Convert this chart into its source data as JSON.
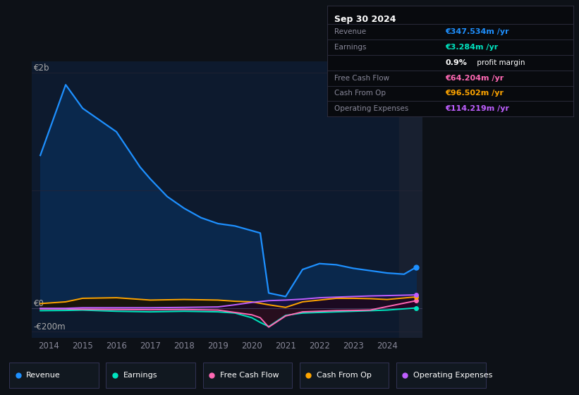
{
  "background_color": "#0d1117",
  "plot_bg_color": "#0d1a2e",
  "info_bg_color": "#080a0e",
  "ylabel_top": "€2b",
  "ylabel_zero": "€0",
  "ylabel_bottom": "-€200m",
  "x_labels": [
    "2014",
    "2015",
    "2016",
    "2017",
    "2018",
    "2019",
    "2020",
    "2021",
    "2022",
    "2023",
    "2024"
  ],
  "ylim": [
    -250,
    2100
  ],
  "info_box": {
    "date": "Sep 30 2024",
    "date_color": "#ffffff",
    "rows": [
      {
        "label": "Revenue",
        "label_color": "#888899",
        "value": "€347.534m /yr",
        "value_color": "#1e90ff"
      },
      {
        "label": "Earnings",
        "label_color": "#888899",
        "value": "€3.284m /yr",
        "value_color": "#00e5c0"
      },
      {
        "label": "",
        "label_color": "#888899",
        "value": "0.9%",
        "value_color": "#ffffff",
        "extra": " profit margin",
        "extra_color": "#ffffff"
      },
      {
        "label": "Free Cash Flow",
        "label_color": "#888899",
        "value": "€64.204m /yr",
        "value_color": "#ff69b4"
      },
      {
        "label": "Cash From Op",
        "label_color": "#888899",
        "value": "€96.502m /yr",
        "value_color": "#ffa500"
      },
      {
        "label": "Operating Expenses",
        "label_color": "#888899",
        "value": "€114.219m /yr",
        "value_color": "#bf5fff"
      }
    ]
  },
  "revenue_x": [
    2013.75,
    2014.5,
    2015.0,
    2015.5,
    2016.0,
    2016.7,
    2017.0,
    2017.5,
    2018.0,
    2018.5,
    2019.0,
    2019.5,
    2019.75,
    2020.25,
    2020.5,
    2021.0,
    2021.5,
    2022.0,
    2022.5,
    2023.0,
    2023.5,
    2024.0,
    2024.5,
    2024.85
  ],
  "revenue_y": [
    1300,
    1900,
    1700,
    1600,
    1500,
    1200,
    1100,
    950,
    850,
    770,
    720,
    700,
    680,
    640,
    130,
    100,
    330,
    380,
    370,
    340,
    320,
    300,
    290,
    348
  ],
  "earnings_x": [
    2013.75,
    2014.5,
    2015.0,
    2016.0,
    2017.0,
    2018.0,
    2019.0,
    2019.5,
    2020.0,
    2020.25,
    2020.5,
    2021.0,
    2021.5,
    2022.0,
    2022.5,
    2023.0,
    2023.5,
    2024.0,
    2024.85
  ],
  "earnings_y": [
    -20,
    -18,
    -15,
    -25,
    -30,
    -25,
    -30,
    -40,
    -80,
    -120,
    -155,
    -60,
    -40,
    -35,
    -30,
    -25,
    -20,
    -15,
    3
  ],
  "fcf_x": [
    2013.75,
    2014.5,
    2015.0,
    2016.0,
    2017.0,
    2018.0,
    2019.0,
    2019.5,
    2020.0,
    2020.25,
    2020.5,
    2021.0,
    2021.5,
    2022.0,
    2022.5,
    2023.0,
    2023.5,
    2024.0,
    2024.85
  ],
  "fcf_y": [
    -5,
    -5,
    -8,
    -10,
    -12,
    -10,
    -15,
    -35,
    -55,
    -80,
    -160,
    -65,
    -30,
    -25,
    -20,
    -18,
    -15,
    15,
    64
  ],
  "cashop_x": [
    2013.75,
    2014.5,
    2015.0,
    2016.0,
    2017.0,
    2018.0,
    2019.0,
    2019.5,
    2020.0,
    2020.5,
    2021.0,
    2021.5,
    2022.0,
    2022.5,
    2023.0,
    2023.5,
    2024.0,
    2024.85
  ],
  "cashop_y": [
    40,
    55,
    85,
    90,
    70,
    75,
    70,
    60,
    55,
    30,
    8,
    55,
    70,
    85,
    85,
    82,
    75,
    97
  ],
  "opex_x": [
    2013.75,
    2014.5,
    2015.0,
    2016.0,
    2017.0,
    2018.0,
    2019.0,
    2019.5,
    2020.0,
    2020.5,
    2021.0,
    2021.5,
    2022.0,
    2022.5,
    2023.0,
    2023.5,
    2024.0,
    2024.85
  ],
  "opex_y": [
    0,
    0,
    5,
    5,
    5,
    8,
    12,
    30,
    50,
    65,
    70,
    78,
    90,
    95,
    100,
    105,
    108,
    114
  ],
  "legend": [
    {
      "label": "Revenue",
      "color": "#1e90ff"
    },
    {
      "label": "Earnings",
      "color": "#00e5c0"
    },
    {
      "label": "Free Cash Flow",
      "color": "#ff69b4"
    },
    {
      "label": "Cash From Op",
      "color": "#ffa500"
    },
    {
      "label": "Operating Expenses",
      "color": "#bf5fff"
    }
  ]
}
